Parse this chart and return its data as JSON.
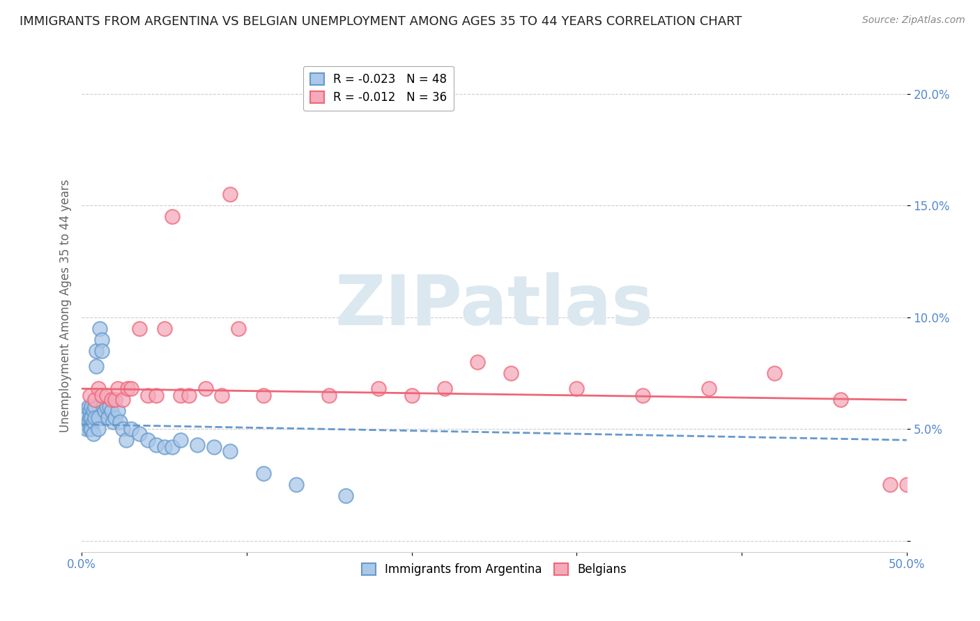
{
  "title": "IMMIGRANTS FROM ARGENTINA VS BELGIAN UNEMPLOYMENT AMONG AGES 35 TO 44 YEARS CORRELATION CHART",
  "source": "Source: ZipAtlas.com",
  "ylabel": "Unemployment Among Ages 35 to 44 years",
  "xlim": [
    0.0,
    0.5
  ],
  "ylim": [
    -0.005,
    0.215
  ],
  "yticks": [
    0.0,
    0.05,
    0.1,
    0.15,
    0.2
  ],
  "ytick_labels": [
    "",
    "5.0%",
    "10.0%",
    "15.0%",
    "20.0%"
  ],
  "xticks": [
    0.0,
    0.1,
    0.2,
    0.3,
    0.4,
    0.5
  ],
  "xtick_labels": [
    "0.0%",
    "",
    "",
    "",
    "",
    "50.0%"
  ],
  "legend_entries": [
    {
      "label": "R = -0.023   N = 48"
    },
    {
      "label": "R = -0.012   N = 36"
    }
  ],
  "blue_scatter_x": [
    0.002,
    0.003,
    0.003,
    0.004,
    0.004,
    0.005,
    0.005,
    0.005,
    0.006,
    0.006,
    0.006,
    0.007,
    0.007,
    0.007,
    0.008,
    0.008,
    0.009,
    0.009,
    0.01,
    0.01,
    0.011,
    0.012,
    0.012,
    0.013,
    0.014,
    0.015,
    0.016,
    0.017,
    0.018,
    0.019,
    0.02,
    0.022,
    0.023,
    0.025,
    0.027,
    0.03,
    0.035,
    0.04,
    0.045,
    0.05,
    0.055,
    0.06,
    0.07,
    0.08,
    0.09,
    0.11,
    0.13,
    0.16
  ],
  "blue_scatter_y": [
    0.058,
    0.055,
    0.05,
    0.06,
    0.053,
    0.058,
    0.055,
    0.05,
    0.06,
    0.055,
    0.05,
    0.058,
    0.053,
    0.048,
    0.06,
    0.055,
    0.085,
    0.078,
    0.055,
    0.05,
    0.095,
    0.09,
    0.085,
    0.06,
    0.058,
    0.06,
    0.055,
    0.06,
    0.058,
    0.053,
    0.055,
    0.058,
    0.053,
    0.05,
    0.045,
    0.05,
    0.048,
    0.045,
    0.043,
    0.042,
    0.042,
    0.045,
    0.043,
    0.042,
    0.04,
    0.03,
    0.025,
    0.02
  ],
  "pink_scatter_x": [
    0.005,
    0.008,
    0.01,
    0.012,
    0.015,
    0.018,
    0.02,
    0.022,
    0.025,
    0.028,
    0.03,
    0.035,
    0.04,
    0.045,
    0.05,
    0.055,
    0.06,
    0.065,
    0.075,
    0.085,
    0.09,
    0.095,
    0.11,
    0.15,
    0.18,
    0.2,
    0.22,
    0.24,
    0.26,
    0.3,
    0.34,
    0.38,
    0.42,
    0.46,
    0.49,
    0.5
  ],
  "pink_scatter_y": [
    0.065,
    0.063,
    0.068,
    0.065,
    0.065,
    0.063,
    0.063,
    0.068,
    0.063,
    0.068,
    0.068,
    0.095,
    0.065,
    0.065,
    0.095,
    0.145,
    0.065,
    0.065,
    0.068,
    0.065,
    0.155,
    0.095,
    0.065,
    0.065,
    0.068,
    0.065,
    0.068,
    0.08,
    0.075,
    0.068,
    0.065,
    0.068,
    0.075,
    0.063,
    0.025,
    0.025
  ],
  "blue_trend_x": [
    0.0,
    0.5
  ],
  "blue_trend_y": [
    0.052,
    0.045
  ],
  "pink_trend_x": [
    0.0,
    0.5
  ],
  "pink_trend_y": [
    0.068,
    0.063
  ],
  "blue_line_color": "#6699cc",
  "pink_line_color": "#ee6677",
  "blue_scatter_color": "#aac8e8",
  "pink_scatter_color": "#f5aabb",
  "background_color": "#ffffff",
  "grid_color": "#cccccc",
  "title_fontsize": 13,
  "axis_label_fontsize": 12,
  "tick_fontsize": 12,
  "tick_color": "#5588cc",
  "watermark_text": "ZIPatlas",
  "watermark_color": "#dce8f0"
}
